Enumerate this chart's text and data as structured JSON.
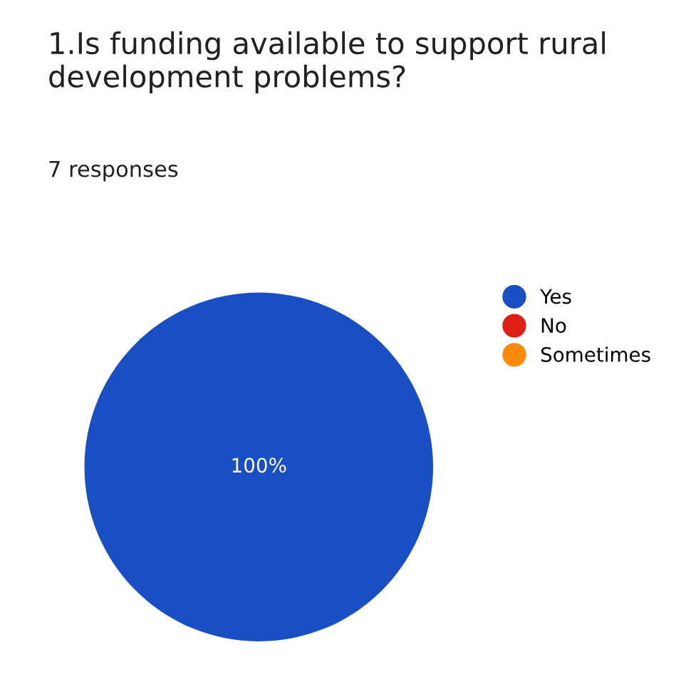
{
  "chart_data": {
    "type": "pie",
    "title": "1.Is funding available to support rural development problems?",
    "subtitle": "7 responses",
    "categories": [
      "Yes",
      "No",
      "Sometimes"
    ],
    "values": [
      100,
      0,
      0
    ],
    "colors": [
      "#1a4fc4",
      "#dc1f12",
      "#f98a0c"
    ],
    "value_labels": [
      "100%",
      null,
      null
    ],
    "legend": "right"
  }
}
